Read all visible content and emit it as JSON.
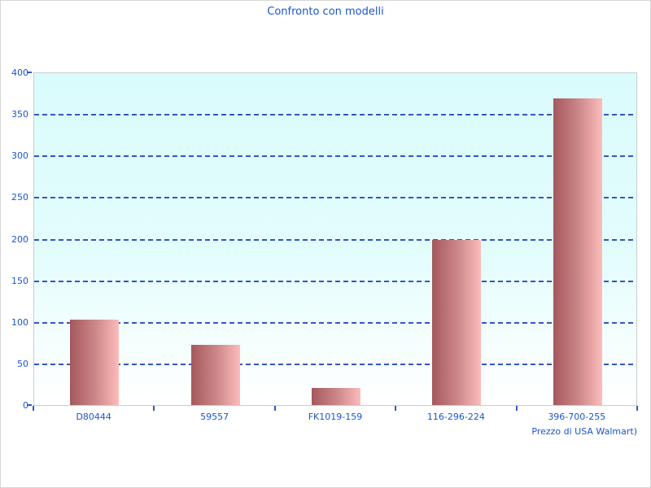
{
  "chart_data": {
    "type": "bar",
    "title": "Confronto con modelli",
    "categories": [
      "D80444",
      "59557",
      "FK1019-159",
      "116-296-224",
      "396-700-255"
    ],
    "values": [
      103,
      72,
      21,
      199,
      369
    ],
    "xlabel": "Prezzo di USA Walmart)",
    "ylabel": "",
    "ylim": [
      0,
      400
    ],
    "yticks": [
      0,
      50,
      100,
      150,
      200,
      250,
      300,
      350,
      400
    ],
    "grid": "horizontal-dashed",
    "legend_position": "none",
    "colors": {
      "title_text": "#1b55cc",
      "axis_text": "#1b55cc",
      "gridline": "#3356c4",
      "tick": "#3356c4",
      "plot_bg_top": "#dafbfc",
      "plot_bg_bottom": "#ffffff",
      "plot_border": "#c6ced0",
      "bar_gradient_dark": "#a4585c",
      "bar_gradient_mid": "#cf8a8c",
      "bar_gradient_light": "#fcbcbc",
      "page_border": "#d6d6d6"
    }
  }
}
